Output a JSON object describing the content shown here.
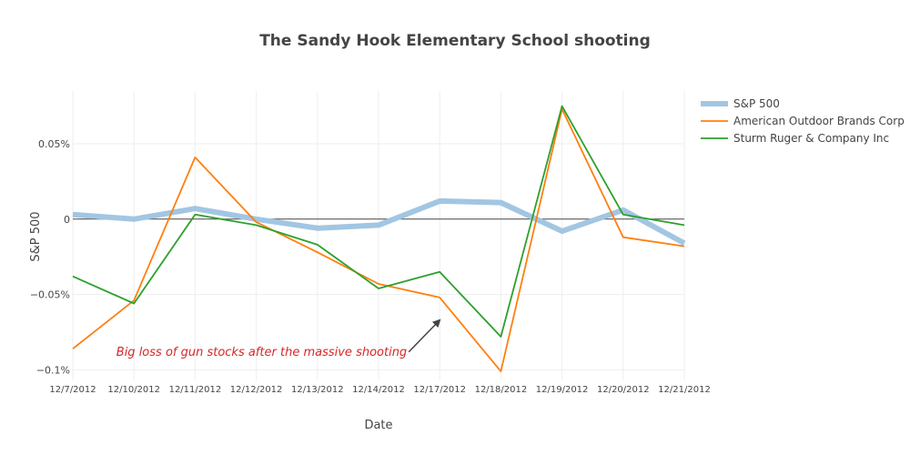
{
  "chart_data": {
    "type": "line",
    "title": "The Sandy Hook Elementary School shooting",
    "xlabel": "Date",
    "ylabel": "S&P 500",
    "x": [
      "12/7/2012",
      "12/10/2012",
      "12/11/2012",
      "12/12/2012",
      "12/13/2012",
      "12/14/2012",
      "12/17/2012",
      "12/18/2012",
      "12/19/2012",
      "12/20/2012",
      "12/21/2012"
    ],
    "ylim": [
      -0.107,
      0.085
    ],
    "yticks": [
      {
        "value": 0.05,
        "label": "0.05%"
      },
      {
        "value": 0,
        "label": "0"
      },
      {
        "value": -0.05,
        "label": "−0.05%"
      },
      {
        "value": -0.1,
        "label": "−0.1%"
      }
    ],
    "grid": true,
    "zeroline": true,
    "legend_position": "top-right",
    "series": [
      {
        "name": "S&P 500",
        "color": "#a2c6e2",
        "width": 6,
        "values": [
          0.003,
          0.0,
          0.007,
          0.0,
          -0.006,
          -0.004,
          0.012,
          0.011,
          -0.008,
          0.006,
          -0.016
        ]
      },
      {
        "name": "American Outdoor Brands Corp",
        "color": "#ff7f0e",
        "width": 1.8,
        "values": [
          -0.086,
          -0.054,
          0.041,
          -0.002,
          -0.022,
          -0.043,
          -0.052,
          -0.101,
          0.073,
          -0.012,
          -0.018
        ]
      },
      {
        "name": "Sturm Ruger & Company Inc",
        "color": "#2ca02c",
        "width": 1.8,
        "values": [
          -0.038,
          -0.056,
          0.003,
          -0.004,
          -0.017,
          -0.046,
          -0.035,
          -0.078,
          0.075,
          0.003,
          -0.004
        ]
      }
    ],
    "annotation": {
      "text": "Big loss of gun stocks after the massive shooting",
      "x": "12/17/2012",
      "y": -0.067,
      "color": "#d62728"
    }
  }
}
